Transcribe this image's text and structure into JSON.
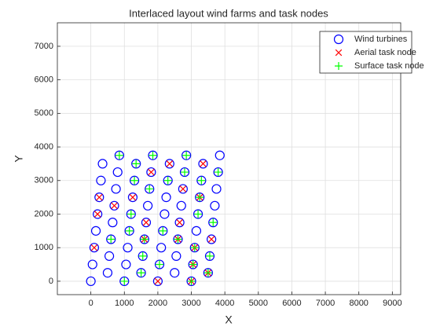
{
  "chart_data": {
    "type": "scatter",
    "title": "Interlaced layout wind farms and task nodes",
    "x_label": "X",
    "y_label": "Y",
    "xlim": [
      -1000,
      9250
    ],
    "ylim": [
      -400,
      7700
    ],
    "xticks": [
      0,
      1000,
      2000,
      3000,
      4000,
      5000,
      6000,
      7000,
      8000,
      9000
    ],
    "yticks": [
      0,
      1000,
      2000,
      3000,
      4000,
      5000,
      6000,
      7000
    ],
    "grid": true,
    "legend": "top-right",
    "series": [
      {
        "name": "Wind turbines",
        "color": "#0000ff",
        "marker": "o",
        "x": [
          0,
          1000,
          2000,
          3000,
          500,
          1500,
          2500,
          3500,
          50,
          1050,
          2050,
          3050,
          550,
          1550,
          2550,
          3550,
          100,
          1100,
          2100,
          3100,
          600,
          1600,
          2600,
          3600,
          150,
          1150,
          2150,
          3150,
          650,
          1650,
          2650,
          3650,
          200,
          1200,
          2200,
          3200,
          700,
          1700,
          2700,
          3700,
          250,
          1250,
          2250,
          3250,
          750,
          1750,
          2750,
          3750,
          300,
          1300,
          2300,
          3300,
          800,
          1800,
          2800,
          3800,
          350,
          1350,
          2350,
          3350,
          850,
          1850,
          2850,
          3850
        ],
        "y": [
          0,
          0,
          0,
          0,
          250,
          250,
          250,
          250,
          500,
          500,
          500,
          500,
          750,
          750,
          750,
          750,
          1000,
          1000,
          1000,
          1000,
          1250,
          1250,
          1250,
          1250,
          1500,
          1500,
          1500,
          1500,
          1750,
          1750,
          1750,
          1750,
          2000,
          2000,
          2000,
          2000,
          2250,
          2250,
          2250,
          2250,
          2500,
          2500,
          2500,
          2500,
          2750,
          2750,
          2750,
          2750,
          3000,
          3000,
          3000,
          3000,
          3250,
          3250,
          3250,
          3250,
          3500,
          3500,
          3500,
          3500,
          3750,
          3750,
          3750,
          3750
        ]
      },
      {
        "name": "Aerial task node",
        "color": "#ff0000",
        "marker": "x",
        "x": [
          2000,
          3000,
          3500,
          3050,
          100,
          3100,
          1600,
          2600,
          3600,
          1650,
          2650,
          200,
          700,
          250,
          1250,
          3250,
          2750,
          1800,
          2350,
          3350
        ],
        "y": [
          0,
          0,
          250,
          500,
          1000,
          1000,
          1250,
          1250,
          1250,
          1750,
          1750,
          2000,
          2250,
          2500,
          2500,
          2500,
          2750,
          3250,
          3500,
          3500
        ]
      },
      {
        "name": "Surface task node",
        "color": "#00ff00",
        "marker": "+",
        "x": [
          1000,
          3000,
          1500,
          3500,
          2050,
          3050,
          1550,
          3550,
          3100,
          600,
          1600,
          2600,
          1150,
          2150,
          3650,
          1200,
          3200,
          3250,
          1750,
          1300,
          2300,
          3300,
          2800,
          3800,
          1350,
          850,
          1850,
          2850
        ],
        "y": [
          0,
          0,
          250,
          250,
          500,
          500,
          750,
          750,
          1000,
          1250,
          1250,
          1250,
          1500,
          1500,
          1750,
          2000,
          2000,
          2500,
          2750,
          3000,
          3000,
          3000,
          3250,
          3250,
          3500,
          3750,
          3750,
          3750
        ]
      }
    ]
  }
}
